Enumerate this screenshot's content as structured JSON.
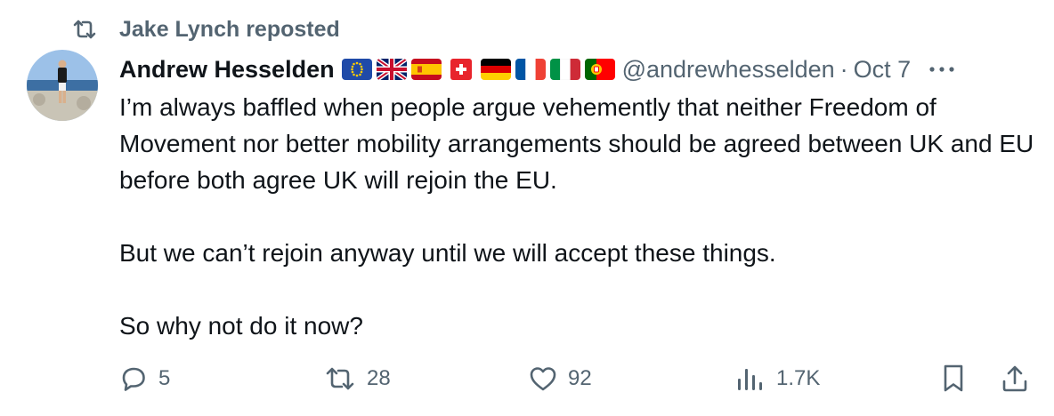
{
  "repost": {
    "text": "Jake Lynch reposted",
    "icon": "repost-icon"
  },
  "author": {
    "name": "Andrew Hesselden",
    "handle": "@andrewhesselden",
    "separator": "·",
    "date": "Oct 7",
    "flags": [
      "eu-flag-icon",
      "uk-flag-icon",
      "spain-flag-icon",
      "switzerland-flag-icon",
      "germany-flag-icon",
      "france-flag-icon",
      "italy-flag-icon",
      "portugal-flag-icon"
    ]
  },
  "tweet": {
    "text": "I’m always baffled when people argue vehemently that neither Freedom of Movement nor better mobility arrangements should be agreed between UK and EU before both agree UK will rejoin the EU.\n\nBut we can’t rejoin anyway until we will accept these things.\n\nSo why not do it now?"
  },
  "actions": {
    "replies": "5",
    "reposts": "28",
    "likes": "92",
    "views": "1.7K"
  },
  "colors": {
    "text": "#0f1419",
    "secondary": "#536471",
    "background": "#ffffff"
  }
}
